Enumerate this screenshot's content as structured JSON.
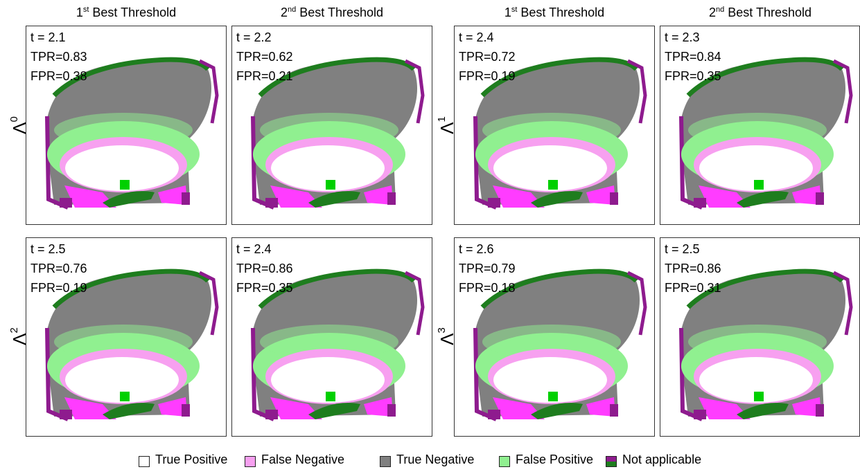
{
  "column_headers": [
    {
      "number": "1",
      "superscript": "st",
      "text": "Best Threshold"
    },
    {
      "number": "2",
      "superscript": "nd",
      "text": "Best Threshold"
    },
    {
      "number": "1",
      "superscript": "st",
      "text": "Best Threshold"
    },
    {
      "number": "2",
      "superscript": "nd",
      "text": "Best Threshold"
    }
  ],
  "row_labels": [
    {
      "symbol": "Λ",
      "superscript": "0"
    },
    {
      "symbol": "Λ",
      "superscript": "1"
    },
    {
      "symbol": "Λ",
      "superscript": "2"
    },
    {
      "symbol": "Λ",
      "superscript": "3"
    }
  ],
  "panels": [
    {
      "t": "t = 2.1",
      "tpr": "TPR=0.83",
      "fpr": "FPR=0.38"
    },
    {
      "t": "t = 2.2",
      "tpr": "TPR=0.62",
      "fpr": "FPR=0.21"
    },
    {
      "t": "t = 2.4",
      "tpr": "TPR=0.72",
      "fpr": "FPR=0.19"
    },
    {
      "t": "t = 2.3",
      "tpr": "TPR=0.84",
      "fpr": "FPR=0.35"
    },
    {
      "t": "t = 2.5",
      "tpr": "TPR=0.76",
      "fpr": "FPR=0.19"
    },
    {
      "t": "t = 2.4",
      "tpr": "TPR=0.86",
      "fpr": "FPR=0.35"
    },
    {
      "t": "t = 2.6",
      "tpr": "TPR=0.79",
      "fpr": "FPR=0.18"
    },
    {
      "t": "t = 2.5",
      "tpr": "TPR=0.86",
      "fpr": "FPR=0.31"
    }
  ],
  "legend": [
    "True Positive",
    "False Negative",
    "True Negative",
    "False Positive",
    "Not applicable"
  ]
}
